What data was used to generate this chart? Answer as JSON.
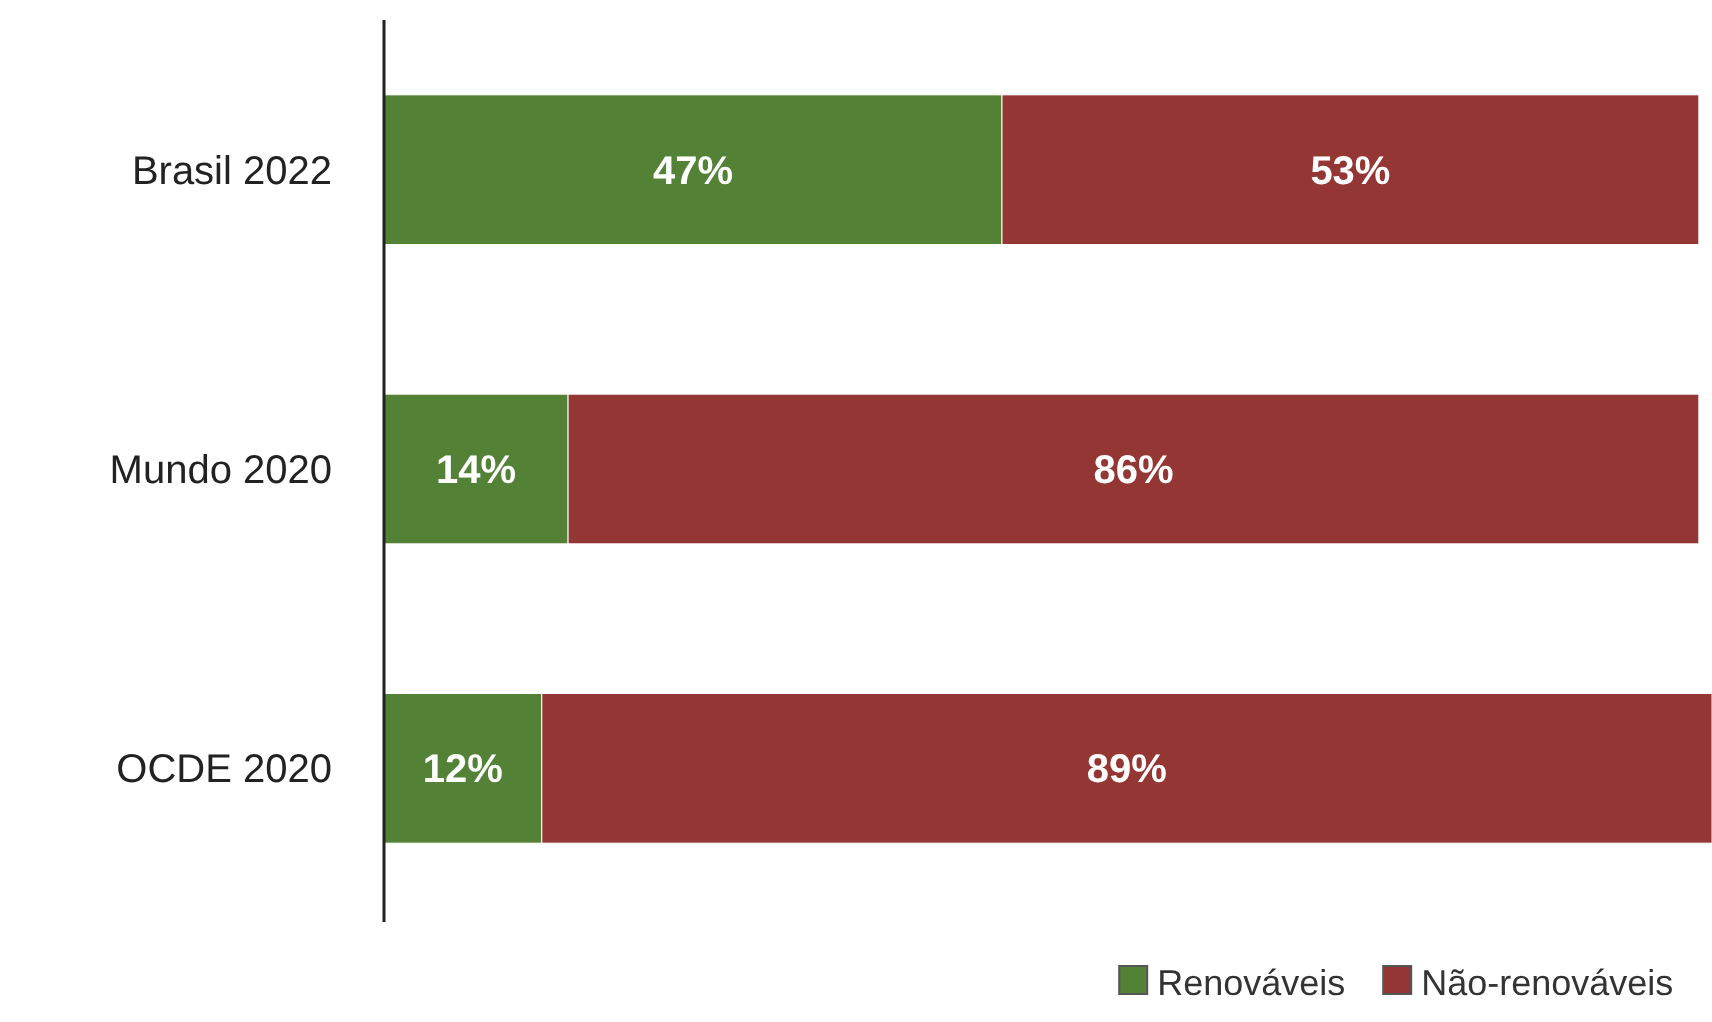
{
  "chart_data": {
    "type": "bar",
    "orientation": "horizontal",
    "stacked": true,
    "categories": [
      "Brasil 2022",
      "Mundo 2020",
      "OCDE 2020"
    ],
    "series": [
      {
        "name": "Renováveis",
        "color": "#538135",
        "values": [
          47,
          14,
          12
        ],
        "value_labels": [
          "47%",
          "14%",
          "12%"
        ]
      },
      {
        "name": "Não-renováveis",
        "color": "#943634",
        "values": [
          53,
          86,
          89
        ],
        "value_labels": [
          "53%",
          "86%",
          "89%"
        ]
      }
    ],
    "legend": "bottom right"
  }
}
